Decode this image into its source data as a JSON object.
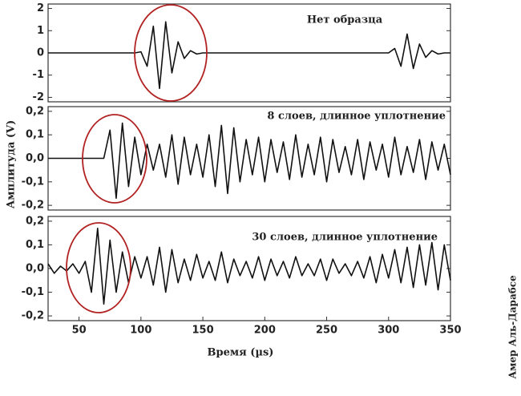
{
  "chart_data": [
    {
      "type": "line",
      "title": "Нет образца",
      "x": [
        25,
        30,
        35,
        40,
        45,
        50,
        55,
        60,
        65,
        70,
        75,
        80,
        85,
        90,
        95,
        100,
        105,
        110,
        115,
        120,
        125,
        130,
        135,
        140,
        145,
        150,
        155,
        160,
        165,
        170,
        175,
        180,
        185,
        190,
        195,
        200,
        205,
        210,
        215,
        220,
        225,
        230,
        235,
        240,
        245,
        250,
        255,
        260,
        265,
        270,
        275,
        280,
        285,
        290,
        295,
        300,
        305,
        310,
        315,
        320,
        325,
        330,
        335,
        340,
        345,
        350
      ],
      "values": [
        0,
        0,
        0,
        0,
        0,
        0,
        0,
        0,
        0,
        0,
        0,
        0,
        0,
        0,
        0,
        0.05,
        -0.6,
        1.2,
        -1.6,
        1.4,
        -0.9,
        0.5,
        -0.25,
        0.1,
        -0.05,
        0,
        0,
        0,
        0,
        0,
        0,
        0,
        0,
        0,
        0,
        0,
        0,
        0,
        0,
        0,
        0,
        0,
        0,
        0,
        0,
        0,
        0,
        0,
        0,
        0,
        0,
        0,
        0,
        0,
        0,
        0,
        0.2,
        -0.6,
        0.85,
        -0.7,
        0.4,
        -0.2,
        0.1,
        -0.05,
        0,
        0
      ],
      "color": "#111111",
      "xlim": [
        25,
        350
      ],
      "ylim": [
        -2.2,
        2.2
      ],
      "yticks": [
        -2,
        -1,
        0,
        1,
        2
      ]
    },
    {
      "type": "line",
      "title": "8 слоев, длинное уплотнение",
      "ylabel": "Амплитуда (V)",
      "x": [
        25,
        30,
        35,
        40,
        45,
        50,
        55,
        60,
        65,
        70,
        75,
        80,
        85,
        90,
        95,
        100,
        105,
        110,
        115,
        120,
        125,
        130,
        135,
        140,
        145,
        150,
        155,
        160,
        165,
        170,
        175,
        180,
        185,
        190,
        195,
        200,
        205,
        210,
        215,
        220,
        225,
        230,
        235,
        240,
        245,
        250,
        255,
        260,
        265,
        270,
        275,
        280,
        285,
        290,
        295,
        300,
        305,
        310,
        315,
        320,
        325,
        330,
        335,
        340,
        345,
        350
      ],
      "values": [
        0,
        0,
        0,
        0,
        0,
        0,
        0,
        0,
        0,
        0,
        0.12,
        -0.17,
        0.15,
        -0.12,
        0.09,
        -0.07,
        0.06,
        -0.05,
        0.06,
        -0.08,
        0.1,
        -0.11,
        0.09,
        -0.07,
        0.06,
        -0.08,
        0.1,
        -0.12,
        0.14,
        -0.15,
        0.13,
        -0.1,
        0.08,
        -0.07,
        0.09,
        -0.1,
        0.08,
        -0.06,
        0.07,
        -0.09,
        0.1,
        -0.08,
        0.06,
        -0.07,
        0.09,
        -0.1,
        0.08,
        -0.06,
        0.05,
        -0.07,
        0.08,
        -0.09,
        0.07,
        -0.05,
        0.06,
        -0.08,
        0.09,
        -0.07,
        0.05,
        -0.06,
        0.08,
        -0.09,
        0.07,
        -0.05,
        0.06,
        -0.07
      ],
      "color": "#111111",
      "xlim": [
        25,
        350
      ],
      "ylim": [
        -0.22,
        0.22
      ],
      "yticks": [
        {
          "value": -0.2,
          "label": "-0,2"
        },
        {
          "value": -0.1,
          "label": "-0,1"
        },
        {
          "value": 0,
          "label": "0,0"
        },
        {
          "value": 0.1,
          "label": "0,1"
        },
        {
          "value": 0.2,
          "label": "0,2"
        }
      ]
    },
    {
      "type": "line",
      "title": "30 слоев, длинное уплотнение",
      "xlabel": "Время (µs)",
      "x": [
        25,
        30,
        35,
        40,
        45,
        50,
        55,
        60,
        65,
        70,
        75,
        80,
        85,
        90,
        95,
        100,
        105,
        110,
        115,
        120,
        125,
        130,
        135,
        140,
        145,
        150,
        155,
        160,
        165,
        170,
        175,
        180,
        185,
        190,
        195,
        200,
        205,
        210,
        215,
        220,
        225,
        230,
        235,
        240,
        245,
        250,
        255,
        260,
        265,
        270,
        275,
        280,
        285,
        290,
        295,
        300,
        305,
        310,
        315,
        320,
        325,
        330,
        335,
        340,
        345,
        350
      ],
      "values": [
        0.02,
        -0.02,
        0.01,
        -0.01,
        0.02,
        -0.02,
        0.03,
        -0.1,
        0.17,
        -0.15,
        0.12,
        -0.1,
        0.07,
        -0.06,
        0.05,
        -0.04,
        0.05,
        -0.07,
        0.09,
        -0.1,
        0.08,
        -0.06,
        0.04,
        -0.05,
        0.06,
        -0.04,
        0.03,
        -0.05,
        0.07,
        -0.06,
        0.04,
        -0.03,
        0.03,
        -0.04,
        0.05,
        -0.05,
        0.04,
        -0.03,
        0.03,
        -0.04,
        0.05,
        -0.03,
        0.02,
        -0.03,
        0.04,
        -0.05,
        0.04,
        -0.02,
        0.02,
        -0.03,
        0.03,
        -0.04,
        0.05,
        -0.06,
        0.06,
        -0.04,
        0.08,
        -0.06,
        0.09,
        -0.08,
        0.1,
        -0.07,
        0.11,
        -0.09,
        0.1,
        -0.05
      ],
      "color": "#111111",
      "xlim": [
        25,
        350
      ],
      "ylim": [
        -0.22,
        0.22
      ],
      "yticks": [
        {
          "value": -0.2,
          "label": "-0,2"
        },
        {
          "value": -0.1,
          "label": "-0,1"
        },
        {
          "value": 0,
          "label": "0,0"
        },
        {
          "value": 0.1,
          "label": "0,1"
        },
        {
          "value": 0.2,
          "label": "0,2"
        }
      ],
      "xticks": [
        50,
        100,
        150,
        200,
        250,
        300,
        350
      ]
    }
  ],
  "credit": "Амер Аль-Дарабсе"
}
